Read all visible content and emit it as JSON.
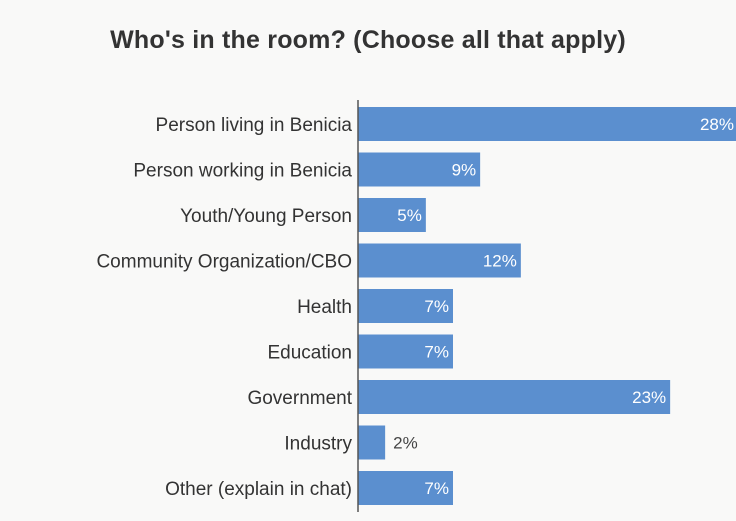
{
  "chart_data": {
    "type": "bar",
    "orientation": "horizontal",
    "title": "Who's in the room? (Choose all that apply)",
    "categories": [
      "Person living in Benicia",
      "Person working in Benicia",
      "Youth/Young Person",
      "Community Organization/CBO",
      "Health",
      "Education",
      "Government",
      "Industry",
      "Other (explain in chat)"
    ],
    "values": [
      28,
      9,
      5,
      12,
      7,
      7,
      23,
      2,
      7
    ],
    "value_suffix": "%",
    "xlim": [
      0,
      28
    ],
    "grid": false,
    "legend": "none"
  },
  "colors": {
    "bar": "#5b8fcf",
    "axis": "#555555",
    "label_inside": "#ffffff",
    "label_outside": "#444444",
    "background": "#f9f9f8"
  }
}
